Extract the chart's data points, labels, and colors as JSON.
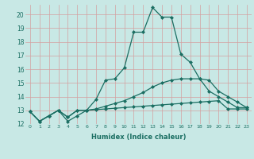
{
  "xlabel": "Humidex (Indice chaleur)",
  "ylabel": "",
  "bg_color": "#c8e8e5",
  "grid_color": "#d4a0a0",
  "line_color": "#1a6e62",
  "xlim": [
    -0.5,
    23.5
  ],
  "ylim": [
    12,
    20.7
  ],
  "xticks": [
    0,
    1,
    2,
    3,
    4,
    5,
    6,
    7,
    8,
    9,
    10,
    11,
    12,
    13,
    14,
    15,
    16,
    17,
    18,
    19,
    20,
    21,
    22,
    23
  ],
  "yticks": [
    12,
    13,
    14,
    15,
    16,
    17,
    18,
    19,
    20
  ],
  "series": [
    [
      12.9,
      12.2,
      12.6,
      13.0,
      12.2,
      12.6,
      13.0,
      13.8,
      15.2,
      15.3,
      16.1,
      18.7,
      18.7,
      20.5,
      19.8,
      19.8,
      17.1,
      16.5,
      15.3,
      14.4,
      14.0,
      13.6,
      13.2,
      13.2
    ],
    [
      12.9,
      12.2,
      12.6,
      13.0,
      12.5,
      13.0,
      13.0,
      13.05,
      13.1,
      13.15,
      13.2,
      13.25,
      13.3,
      13.35,
      13.4,
      13.45,
      13.5,
      13.55,
      13.6,
      13.65,
      13.7,
      13.1,
      13.1,
      13.1
    ],
    [
      12.9,
      12.2,
      12.6,
      13.0,
      12.5,
      13.0,
      13.0,
      13.1,
      13.3,
      13.5,
      13.7,
      14.0,
      14.3,
      14.7,
      15.0,
      15.2,
      15.3,
      15.3,
      15.3,
      15.2,
      14.4,
      14.0,
      13.6,
      13.2
    ]
  ]
}
